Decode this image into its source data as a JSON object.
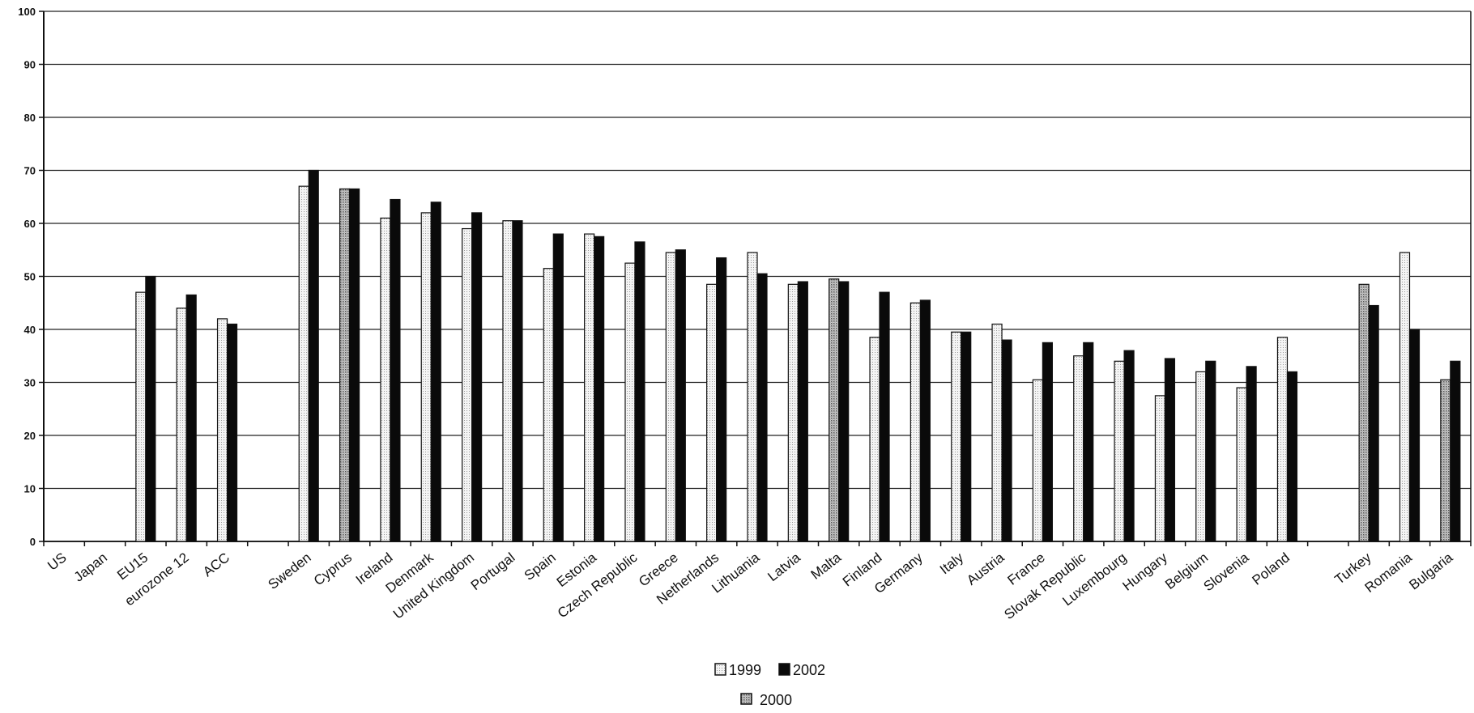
{
  "chart_data": {
    "type": "bar",
    "title": "",
    "xlabel": "",
    "ylabel": "",
    "ylim": [
      0,
      100
    ],
    "yticks": [
      0,
      10,
      20,
      30,
      40,
      50,
      60,
      70,
      80,
      90,
      100
    ],
    "grid": true,
    "legend_position": "bottom-center",
    "categories": [
      "US",
      "Japan",
      "EU15",
      "eurozone 12",
      "ACC",
      "",
      "Sweden",
      "Cyprus",
      "Ireland",
      "Denmark",
      "United Kingdom",
      "Portugal",
      "Spain",
      "Estonia",
      "Czech Republic",
      "Greece",
      "Netherlands",
      "Lithuania",
      "Latvia",
      "Malta",
      "Finland",
      "Germany",
      "Italy",
      "Austria",
      "France",
      "Slovak Republic",
      "Luxembourg",
      "Hungary",
      "Belgium",
      "Slovenia",
      "Poland",
      "",
      "Turkey",
      "Romania",
      "Bulgaria"
    ],
    "series": [
      {
        "name": "1999",
        "color": "#e8e8e8",
        "pattern": "light-dotted",
        "values": [
          null,
          null,
          47,
          44,
          42,
          null,
          67,
          null,
          61,
          62,
          59,
          60.5,
          51.5,
          58,
          52.5,
          54.5,
          48.5,
          54.5,
          48.5,
          null,
          38.5,
          45,
          39.5,
          41,
          30.5,
          35,
          34,
          27.5,
          32,
          29,
          38.5,
          null,
          null,
          54.5,
          null
        ]
      },
      {
        "name": "2002",
        "color": "#0a0a0a",
        "pattern": "solid",
        "values": [
          null,
          null,
          50,
          46.5,
          41,
          null,
          70,
          66.5,
          64.5,
          64,
          62,
          60.5,
          58,
          57.5,
          56.5,
          55,
          53.5,
          50.5,
          49,
          49,
          47,
          45.5,
          39.5,
          38,
          37.5,
          37.5,
          36,
          34.5,
          34,
          33,
          32,
          null,
          44.5,
          40,
          34
        ]
      },
      {
        "name": "2000",
        "color": "#bdbdbd",
        "pattern": "dense-dotted",
        "values": [
          null,
          null,
          null,
          null,
          null,
          null,
          null,
          66.5,
          null,
          null,
          null,
          null,
          null,
          null,
          null,
          null,
          null,
          null,
          null,
          49.5,
          null,
          null,
          null,
          null,
          null,
          null,
          null,
          null,
          null,
          null,
          null,
          null,
          48.5,
          null,
          30.5
        ]
      }
    ]
  },
  "legend": {
    "items": [
      {
        "label": "1999",
        "series": 0
      },
      {
        "label": "2002",
        "series": 1
      },
      {
        "label": "2000",
        "series": 2
      }
    ]
  }
}
